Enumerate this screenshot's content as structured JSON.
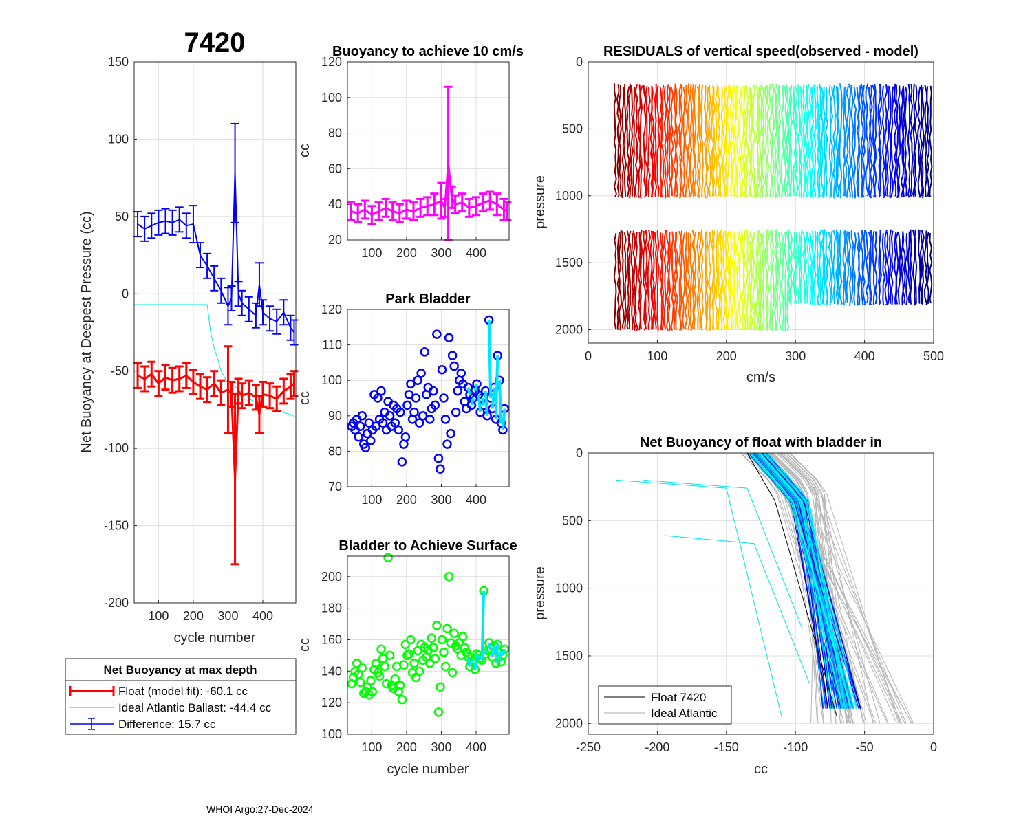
{
  "page": {
    "float_id": "7420",
    "footer": "WHOI Argo:27-Dec-2024"
  },
  "colors": {
    "float": "#ff0000",
    "ideal": "#00e5e5",
    "difference": "#0000ff",
    "buoyancy": "#ff00ff",
    "park": "#0000ff",
    "park_recent": "#00e5ff",
    "surface": "#00ff00",
    "surface_recent": "#00e5ff",
    "grid": "#dedede"
  },
  "chart_data": [
    {
      "id": "net_buoyancy",
      "type": "line",
      "title": "7420",
      "xlabel": "cycle number",
      "ylabel": "Net Buoyancy at Deepest Pressure (cc)",
      "xlim": [
        30,
        495
      ],
      "ylim": [
        -200,
        150
      ],
      "xticks": [
        100,
        200,
        300,
        400
      ],
      "yticks": [
        150,
        100,
        50,
        0,
        -50,
        -100,
        -150,
        -200
      ],
      "series": [
        {
          "name": "Difference",
          "x": [
            40,
            60,
            80,
            100,
            120,
            140,
            160,
            180,
            200,
            220,
            240,
            260,
            280,
            300,
            310,
            320,
            330,
            340,
            360,
            380,
            390,
            400,
            420,
            440,
            460,
            480,
            490
          ],
          "y": [
            45,
            42,
            44,
            46,
            47,
            46,
            48,
            44,
            45,
            25,
            18,
            10,
            2,
            -8,
            -3,
            78,
            0,
            -6,
            -10,
            -14,
            6,
            -12,
            -16,
            -18,
            -12,
            -22,
            -25
          ],
          "err": [
            8,
            8,
            8,
            8,
            8,
            8,
            8,
            8,
            12,
            8,
            8,
            8,
            8,
            12,
            8,
            32,
            8,
            8,
            8,
            8,
            14,
            8,
            8,
            8,
            8,
            8,
            8
          ]
        },
        {
          "name": "Float (model fit)",
          "x": [
            40,
            60,
            80,
            100,
            120,
            140,
            160,
            180,
            200,
            220,
            240,
            260,
            280,
            300,
            310,
            320,
            330,
            340,
            360,
            380,
            390,
            400,
            420,
            440,
            460,
            480,
            490
          ],
          "y": [
            -53,
            -55,
            -52,
            -58,
            -54,
            -56,
            -55,
            -53,
            -57,
            -60,
            -62,
            -58,
            -64,
            -62,
            -65,
            -120,
            -63,
            -66,
            -64,
            -67,
            -78,
            -65,
            -66,
            -68,
            -63,
            -60,
            -58
          ],
          "err": [
            8,
            8,
            8,
            8,
            8,
            8,
            8,
            8,
            8,
            8,
            8,
            8,
            8,
            28,
            8,
            55,
            8,
            8,
            8,
            8,
            12,
            8,
            8,
            8,
            8,
            8,
            8
          ]
        },
        {
          "name": "Ideal Atlantic Ballast",
          "x": [
            30,
            60,
            100,
            150,
            200,
            240,
            250,
            260,
            270,
            280,
            300,
            320,
            340,
            360,
            380,
            400,
            420,
            440,
            460,
            480,
            495
          ],
          "y": [
            -7,
            -7,
            -7,
            -7,
            -7,
            -7,
            -25,
            -35,
            -42,
            -50,
            -58,
            -60,
            -64,
            -68,
            -70,
            -72,
            -74,
            -75,
            -77,
            -78,
            -80
          ]
        }
      ],
      "legend": {
        "title": "Net Buoyancy at max depth",
        "items": [
          "Float (model fit): -60.1 cc",
          "Ideal Atlantic Ballast: -44.4 cc",
          "Difference:  15.7 cc"
        ]
      }
    },
    {
      "id": "buoyancy_10cms",
      "type": "line",
      "title": "Buoyancy to achieve 10 cm/s",
      "ylabel": "cc",
      "xlim": [
        30,
        495
      ],
      "ylim": [
        20,
        120
      ],
      "xticks": [
        100,
        200,
        300,
        400
      ],
      "yticks": [
        120,
        100,
        80,
        60,
        40,
        20
      ],
      "x": [
        40,
        60,
        80,
        100,
        120,
        140,
        160,
        180,
        200,
        220,
        240,
        260,
        280,
        300,
        310,
        320,
        330,
        340,
        360,
        380,
        400,
        420,
        440,
        460,
        480,
        490
      ],
      "y": [
        36,
        35,
        37,
        34,
        36,
        38,
        36,
        35,
        37,
        36,
        38,
        39,
        40,
        42,
        38,
        63,
        44,
        40,
        41,
        38,
        39,
        41,
        42,
        40,
        37,
        36
      ],
      "err": [
        5,
        5,
        5,
        5,
        5,
        5,
        5,
        5,
        5,
        5,
        5,
        5,
        6,
        10,
        5,
        43,
        6,
        5,
        5,
        5,
        5,
        5,
        5,
        6,
        6,
        5
      ]
    },
    {
      "id": "park_bladder",
      "type": "scatter",
      "title": "Park Bladder",
      "ylabel": "cc",
      "xlim": [
        30,
        495
      ],
      "ylim": [
        70,
        120
      ],
      "xticks": [
        100,
        200,
        300,
        400
      ],
      "yticks": [
        120,
        110,
        100,
        90,
        80,
        70
      ],
      "x": [
        42,
        47,
        52,
        57,
        62,
        67,
        72,
        77,
        82,
        87,
        92,
        97,
        102,
        107,
        112,
        117,
        122,
        127,
        132,
        137,
        142,
        147,
        152,
        157,
        162,
        167,
        172,
        177,
        182,
        187,
        192,
        197,
        202,
        207,
        212,
        217,
        222,
        227,
        232,
        237,
        242,
        247,
        252,
        257,
        262,
        267,
        272,
        277,
        282,
        287,
        292,
        297,
        302,
        307,
        312,
        317,
        322,
        327,
        332,
        337,
        342,
        347,
        352,
        357,
        362,
        367,
        372,
        377,
        382,
        387,
        392,
        397,
        402,
        407,
        412,
        417,
        422,
        427,
        432,
        437,
        442,
        447,
        452,
        457,
        462,
        467,
        472,
        477,
        482
      ],
      "y": [
        87,
        88,
        86,
        89,
        84,
        87,
        90,
        82,
        81,
        85,
        88,
        83,
        86,
        96,
        87,
        95,
        89,
        97,
        88,
        91,
        86,
        94,
        90,
        87,
        93,
        88,
        92,
        86,
        91,
        77,
        82,
        84,
        93,
        96,
        99,
        89,
        91,
        95,
        100,
        88,
        102,
        90,
        108,
        96,
        98,
        89,
        92,
        97,
        93,
        113,
        78,
        75,
        103,
        95,
        89,
        82,
        112,
        85,
        107,
        104,
        91,
        97,
        100,
        102,
        99,
        94,
        92,
        98,
        96,
        93,
        95,
        97,
        99,
        96,
        91,
        95,
        93,
        97,
        90,
        117,
        95,
        92,
        98,
        89,
        107,
        100,
        88,
        86,
        92
      ]
    },
    {
      "id": "bladder_surface",
      "type": "scatter",
      "title": "Bladder to Achieve Surface",
      "xlabel": "cycle number",
      "ylabel": "cc",
      "xlim": [
        30,
        495
      ],
      "ylim": [
        100,
        213
      ],
      "xticks": [
        100,
        200,
        300,
        400
      ],
      "yticks": [
        200,
        180,
        160,
        140,
        120,
        100
      ],
      "x": [
        42,
        47,
        52,
        57,
        62,
        67,
        72,
        77,
        82,
        87,
        92,
        97,
        102,
        107,
        112,
        117,
        122,
        127,
        132,
        137,
        142,
        147,
        152,
        157,
        162,
        167,
        172,
        177,
        182,
        187,
        192,
        197,
        202,
        207,
        212,
        217,
        222,
        227,
        232,
        237,
        242,
        247,
        252,
        257,
        262,
        267,
        272,
        277,
        282,
        287,
        292,
        297,
        302,
        307,
        312,
        317,
        322,
        327,
        332,
        337,
        342,
        347,
        352,
        357,
        362,
        367,
        372,
        377,
        382,
        387,
        392,
        397,
        402,
        407,
        412,
        417,
        422,
        427,
        432,
        437,
        442,
        447,
        452,
        457,
        462,
        467,
        472,
        477,
        482
      ],
      "y": [
        132,
        136,
        140,
        145,
        138,
        133,
        142,
        126,
        127,
        130,
        125,
        134,
        127,
        141,
        145,
        139,
        137,
        154,
        148,
        143,
        132,
        212,
        150,
        131,
        129,
        135,
        143,
        127,
        131,
        122,
        144,
        157,
        150,
        151,
        160,
        139,
        145,
        136,
        153,
        140,
        157,
        147,
        155,
        149,
        153,
        145,
        161,
        155,
        148,
        169,
        114,
        130,
        160,
        152,
        143,
        167,
        200,
        158,
        139,
        164,
        156,
        154,
        158,
        150,
        162,
        155,
        152,
        149,
        143,
        146,
        147,
        141,
        151,
        150,
        148,
        147,
        191,
        151,
        153,
        158,
        154,
        149,
        156,
        145,
        157,
        152,
        146,
        150,
        154
      ]
    },
    {
      "id": "residuals",
      "type": "line",
      "title": "RESIDUALS of vertical speed(observed - model)",
      "xlabel": "cm/s",
      "ylabel": "pressure",
      "xlim": [
        0,
        500
      ],
      "ylim": [
        0,
        2100
      ],
      "xticks": [
        0,
        100,
        200,
        300,
        400,
        500
      ],
      "yticks": [
        0,
        500,
        1000,
        1500,
        2000
      ],
      "profile_count": 135,
      "x_range": [
        40,
        495
      ],
      "upper_segment_pressure": [
        160,
        1020
      ],
      "lower_segment_pressure": [
        1250,
        2010
      ]
    },
    {
      "id": "net_buoyancy_profile",
      "type": "line",
      "title": "Net Buoyancy of float with bladder in",
      "xlabel": "cc",
      "ylabel": "pressure",
      "xlim": [
        -250,
        0
      ],
      "ylim": [
        0,
        2080
      ],
      "xticks": [
        -250,
        -200,
        -150,
        -100,
        -50,
        0
      ],
      "yticks": [
        0,
        500,
        1000,
        1500,
        2000
      ],
      "legend": [
        "Float 7420",
        "Ideal Atlantic"
      ],
      "profile_count": 60
    }
  ]
}
